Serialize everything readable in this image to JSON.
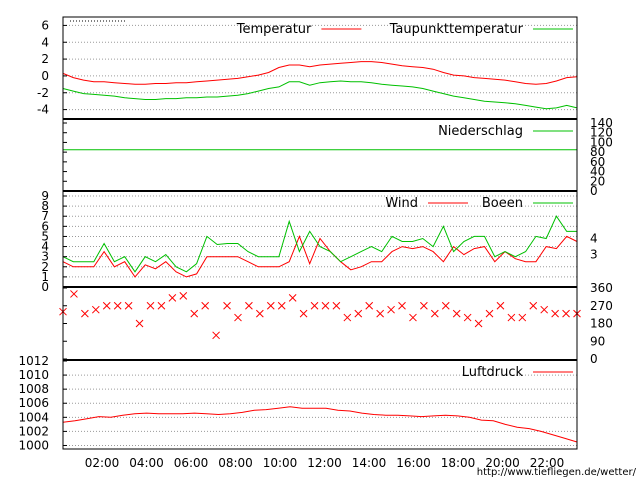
{
  "source_url": "http://www.tiefliegen.de/wetter/",
  "time_labels": [
    "02:00",
    "04:00",
    "06:00",
    "08:00",
    "10:00",
    "12:00",
    "14:00",
    "16:00",
    "18:00",
    "20:00",
    "22:00"
  ],
  "colors": {
    "red": "#ff0000",
    "green": "#00c000",
    "grid": "#9a9a9a",
    "axis": "#000000",
    "url": "#c00000"
  },
  "chart_data": [
    {
      "type": "line",
      "panel": "temperature",
      "ylim": [
        -5,
        7
      ],
      "yticks": [
        -4,
        -2,
        0,
        2,
        4,
        6
      ],
      "grid": true,
      "legend_position": "top-right",
      "series": [
        {
          "name": "Temperatur",
          "color": "#ff0000",
          "values": [
            0.3,
            -0.2,
            -0.5,
            -0.7,
            -0.7,
            -0.8,
            -0.9,
            -1.0,
            -1.0,
            -0.9,
            -0.9,
            -0.8,
            -0.8,
            -0.7,
            -0.6,
            -0.5,
            -0.4,
            -0.3,
            -0.1,
            0.1,
            0.4,
            1.0,
            1.3,
            1.3,
            1.1,
            1.3,
            1.4,
            1.5,
            1.6,
            1.7,
            1.7,
            1.6,
            1.4,
            1.2,
            1.1,
            1.0,
            0.8,
            0.4,
            0.1,
            0.0,
            -0.2,
            -0.3,
            -0.4,
            -0.5,
            -0.7,
            -0.9,
            -1.0,
            -0.9,
            -0.6,
            -0.2,
            -0.1
          ]
        },
        {
          "name": "Taupunkttemperatur",
          "color": "#00c000",
          "values": [
            -1.5,
            -1.8,
            -2.1,
            -2.2,
            -2.3,
            -2.4,
            -2.6,
            -2.7,
            -2.8,
            -2.8,
            -2.7,
            -2.7,
            -2.6,
            -2.6,
            -2.5,
            -2.5,
            -2.4,
            -2.3,
            -2.1,
            -1.8,
            -1.5,
            -1.3,
            -0.7,
            -0.7,
            -1.1,
            -0.8,
            -0.7,
            -0.6,
            -0.7,
            -0.7,
            -0.8,
            -1.0,
            -1.1,
            -1.2,
            -1.3,
            -1.5,
            -1.8,
            -2.1,
            -2.4,
            -2.6,
            -2.8,
            -3.0,
            -3.1,
            -3.2,
            -3.3,
            -3.5,
            -3.7,
            -3.9,
            -3.8,
            -3.5,
            -3.8
          ]
        }
      ]
    },
    {
      "type": "line",
      "panel": "precipitation",
      "ylim": [
        0,
        140
      ],
      "yticks": [
        0,
        20,
        40,
        60,
        80,
        100,
        120,
        140
      ],
      "grid": false,
      "legend_position": "top-right",
      "series": [
        {
          "name": "Niederschlag",
          "color": "#00c000",
          "values": [
            85,
            85
          ]
        }
      ]
    },
    {
      "type": "line",
      "panel": "wind",
      "ylim": [
        0,
        9
      ],
      "yticks": [
        0,
        1,
        2,
        3,
        4,
        5,
        6,
        7,
        8,
        9
      ],
      "right_labels": [
        "3",
        "4"
      ],
      "grid": true,
      "legend_position": "top-right",
      "series": [
        {
          "name": "Wind",
          "color": "#ff0000",
          "values": [
            2.5,
            2.0,
            2.0,
            2.0,
            3.5,
            2.0,
            2.5,
            1.0,
            2.2,
            1.8,
            2.5,
            1.5,
            1.0,
            1.3,
            3.0,
            3.0,
            3.0,
            3.0,
            2.5,
            2.0,
            2.0,
            2.0,
            2.5,
            5.0,
            2.3,
            4.8,
            3.5,
            2.5,
            1.7,
            2.0,
            2.5,
            2.5,
            3.5,
            4.0,
            3.8,
            4.0,
            3.5,
            2.5,
            4.0,
            3.2,
            3.8,
            4.0,
            2.5,
            3.5,
            2.8,
            2.5,
            2.5,
            4.0,
            3.8,
            5.0,
            4.5
          ]
        },
        {
          "name": "Boeen",
          "color": "#00c000",
          "values": [
            3.0,
            2.5,
            2.5,
            2.5,
            4.3,
            2.5,
            3.0,
            1.5,
            3.0,
            2.5,
            3.2,
            2.0,
            1.5,
            2.3,
            5.0,
            4.2,
            4.3,
            4.3,
            3.5,
            3.0,
            3.0,
            3.0,
            6.5,
            3.5,
            5.5,
            4.0,
            3.5,
            2.5,
            3.0,
            3.5,
            4.0,
            3.5,
            5.0,
            4.5,
            4.5,
            4.8,
            4.0,
            6.0,
            3.5,
            4.5,
            5.0,
            5.0,
            3.0,
            3.5,
            3.0,
            3.5,
            5.0,
            4.8,
            7.0,
            5.5,
            5.5
          ]
        }
      ]
    },
    {
      "type": "scatter",
      "panel": "wind_direction",
      "ylim": [
        0,
        360
      ],
      "yticks": [
        0,
        90,
        180,
        270,
        360
      ],
      "grid": false,
      "series": [
        {
          "marker": "x",
          "color": "#ff0000",
          "values": [
            240,
            330,
            230,
            250,
            270,
            270,
            270,
            180,
            270,
            270,
            310,
            320,
            230,
            270,
            120,
            270,
            210,
            270,
            230,
            270,
            270,
            310,
            230,
            270,
            270,
            270,
            210,
            230,
            270,
            230,
            250,
            270,
            210,
            270,
            230,
            270,
            230,
            210,
            180,
            230,
            270,
            210,
            210,
            270,
            250,
            230,
            230,
            230
          ]
        }
      ]
    },
    {
      "type": "line",
      "panel": "pressure",
      "ylim": [
        999.5,
        1012
      ],
      "yticks": [
        1000,
        1002,
        1004,
        1006,
        1008,
        1010,
        1012
      ],
      "grid": true,
      "legend_position": "top-right",
      "series": [
        {
          "name": "Luftdruck",
          "color": "#ff0000",
          "values": [
            1003.3,
            1003.5,
            1003.8,
            1004.1,
            1004.0,
            1004.3,
            1004.5,
            1004.6,
            1004.5,
            1004.5,
            1004.5,
            1004.6,
            1004.5,
            1004.4,
            1004.5,
            1004.7,
            1005.0,
            1005.1,
            1005.3,
            1005.5,
            1005.3,
            1005.3,
            1005.3,
            1005.0,
            1004.9,
            1004.6,
            1004.4,
            1004.3,
            1004.3,
            1004.2,
            1004.1,
            1004.2,
            1004.3,
            1004.2,
            1004.0,
            1003.6,
            1003.5,
            1003.0,
            1002.6,
            1002.4,
            1002.0,
            1001.5,
            1001.0,
            1000.5
          ]
        }
      ]
    }
  ]
}
